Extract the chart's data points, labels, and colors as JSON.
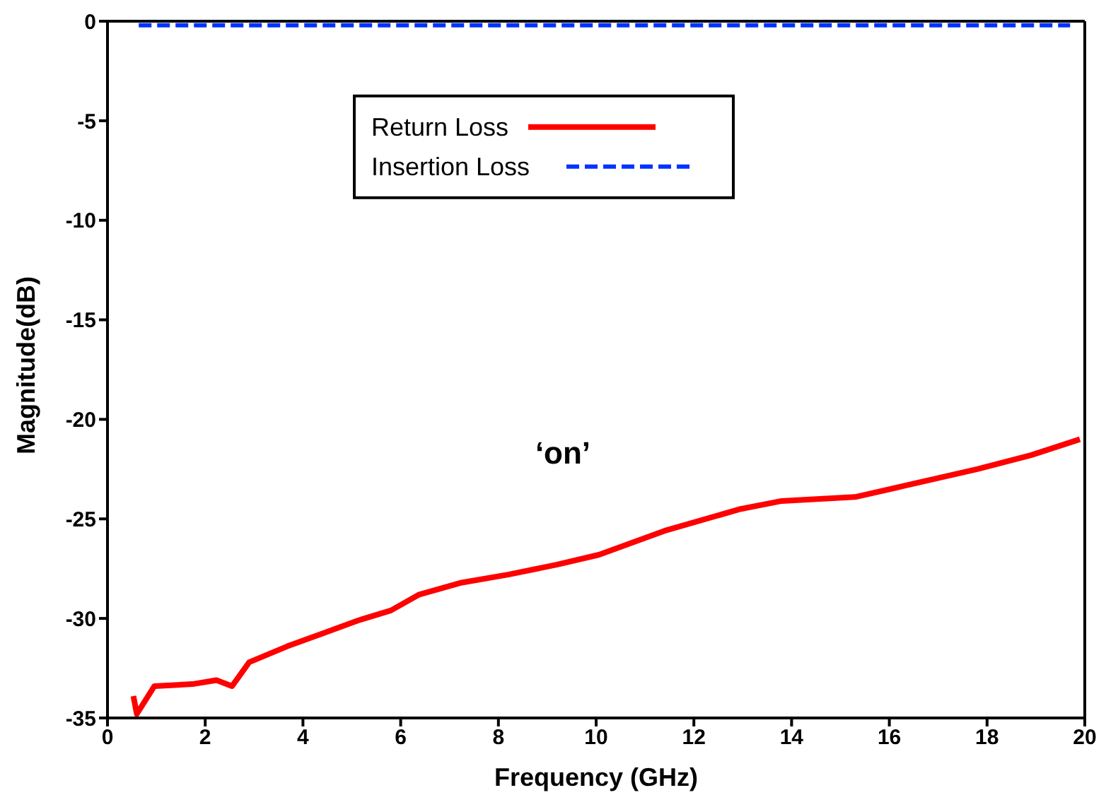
{
  "chart_data": {
    "type": "line",
    "xlabel": "Frequency (GHz)",
    "ylabel": "Magnitude(dB)",
    "annotations": [
      "‘on’"
    ],
    "xlim": [
      0,
      20
    ],
    "xticks": [
      0,
      2,
      4,
      6,
      8,
      10,
      12,
      14,
      16,
      18,
      20
    ],
    "ylim": [
      -35,
      0
    ],
    "yticks": [
      -35,
      -30,
      -25,
      -20,
      -15,
      -10,
      -5,
      0
    ],
    "grid": false,
    "legend": "top",
    "marker": "none",
    "series": [
      {
        "name": "Return Loss",
        "color": "#ff0000",
        "line_style": "solid",
        "x": [
          0.53,
          0.6,
          0.96,
          1.74,
          2.23,
          2.55,
          2.9,
          3.68,
          4.35,
          5.13,
          5.8,
          6.38,
          7.25,
          8.2,
          9.19,
          10.06,
          11.4,
          12.96,
          13.8,
          15.3,
          16.2,
          17.8,
          18.9,
          19.9
        ],
        "values": [
          -33.9,
          -34.8,
          -33.4,
          -33.3,
          -33.1,
          -33.4,
          -32.2,
          -31.4,
          -30.8,
          -30.1,
          -29.6,
          -28.8,
          -28.2,
          -27.8,
          -27.3,
          -26.8,
          -25.6,
          -24.5,
          -24.1,
          -23.9,
          -23.4,
          -22.5,
          -21.8,
          -21.0
        ]
      },
      {
        "name": "Insertion Loss",
        "color": "#0033ff",
        "line_style": "dashed",
        "x": [
          0.64,
          19.7
        ],
        "values": [
          -0.2,
          -0.2
        ]
      }
    ]
  }
}
